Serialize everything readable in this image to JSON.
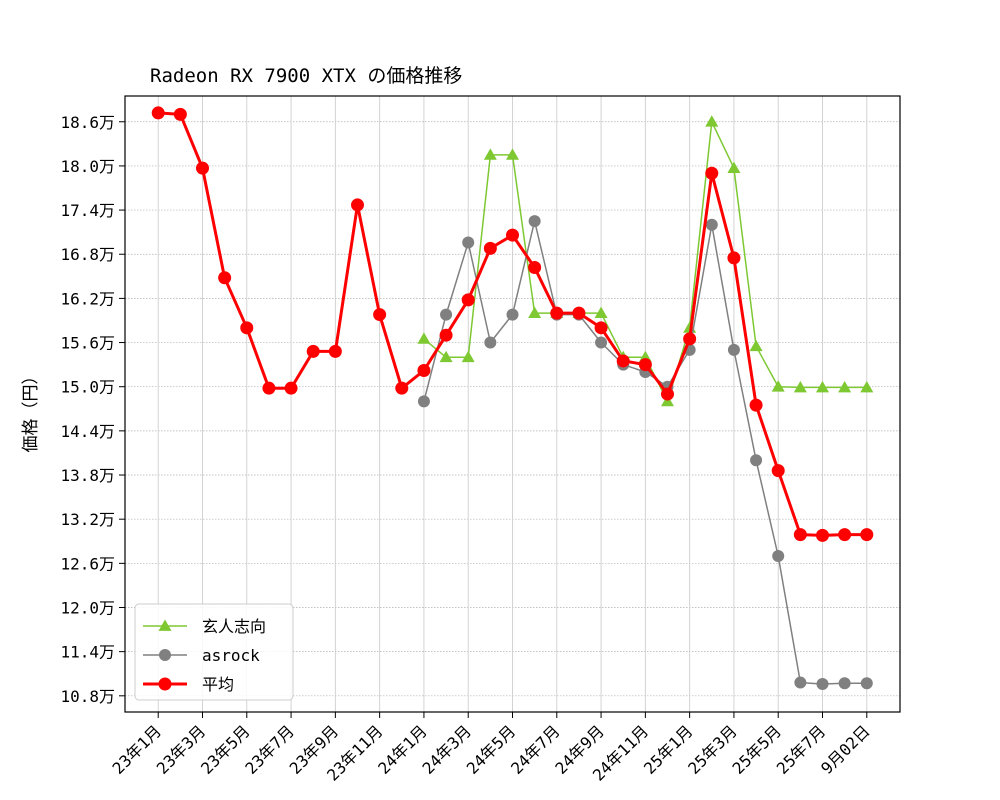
{
  "chart_data": {
    "type": "line",
    "title": "Radeon RX 7900 XTX の価格推移",
    "xlabel": "",
    "ylabel": "価格（円）",
    "ylim": [
      10.58,
      18.95
    ],
    "yticks": [
      10.8,
      11.4,
      12.0,
      12.6,
      13.2,
      13.8,
      14.4,
      15.0,
      15.6,
      16.2,
      16.8,
      17.4,
      18.0,
      18.6
    ],
    "ytick_labels": [
      "10.8万",
      "11.4万",
      "12.0万",
      "12.6万",
      "13.2万",
      "13.8万",
      "14.4万",
      "15.0万",
      "15.6万",
      "16.2万",
      "16.8万",
      "17.4万",
      "18.0万",
      "18.6万"
    ],
    "xlim": [
      -1.5,
      33.5
    ],
    "xticks": [
      0,
      2,
      4,
      6,
      8,
      10,
      12,
      14,
      16,
      18,
      20,
      22,
      24,
      26,
      28,
      30,
      32
    ],
    "xtick_labels": [
      "23年1月",
      "23年3月",
      "23年5月",
      "23年7月",
      "23年9月",
      "23年11月",
      "24年1月",
      "24年3月",
      "24年5月",
      "24年7月",
      "24年9月",
      "24年11月",
      "25年1月",
      "25年3月",
      "25年5月",
      "25年7月",
      "9月02日"
    ],
    "grid": true,
    "legend_position": "lower-left",
    "series": [
      {
        "name": "玄人志向",
        "color": "#7ec832",
        "marker": "triangle",
        "x": [
          12,
          13,
          14,
          15,
          16,
          17,
          18,
          19,
          20,
          21,
          22,
          23,
          24,
          25,
          26,
          27,
          28,
          29,
          30,
          31,
          32
        ],
        "values": [
          15.65,
          15.4,
          15.4,
          18.15,
          18.15,
          16.0,
          16.0,
          16.0,
          16.0,
          15.4,
          15.4,
          14.8,
          15.8,
          18.6,
          17.97,
          15.55,
          15.0,
          14.99,
          14.99,
          14.99,
          14.99
        ]
      },
      {
        "name": "asrock",
        "color": "#808080",
        "marker": "circle",
        "x": [
          12,
          13,
          14,
          15,
          16,
          17,
          18,
          19,
          20,
          21,
          22,
          23,
          24,
          25,
          26,
          27,
          28,
          29,
          30,
          31,
          32
        ],
        "values": [
          14.8,
          15.98,
          16.96,
          15.6,
          15.98,
          17.25,
          15.98,
          15.98,
          15.6,
          15.3,
          15.2,
          15.0,
          15.5,
          17.2,
          15.5,
          14.0,
          12.7,
          10.98,
          10.96,
          10.97,
          10.97
        ]
      },
      {
        "name": "平均",
        "color": "#ff0000",
        "marker": "circle",
        "x": [
          0,
          1,
          2,
          3,
          4,
          5,
          6,
          7,
          8,
          9,
          10,
          11,
          12,
          13,
          14,
          15,
          16,
          17,
          18,
          19,
          20,
          21,
          22,
          23,
          24,
          25,
          26,
          27,
          28,
          29,
          30,
          31,
          32
        ],
        "values": [
          18.72,
          18.7,
          17.97,
          16.48,
          15.8,
          14.98,
          14.98,
          15.48,
          15.48,
          17.47,
          15.98,
          14.98,
          15.22,
          15.7,
          16.18,
          16.88,
          17.06,
          16.62,
          16.0,
          16.0,
          15.8,
          15.35,
          15.3,
          14.9,
          15.65,
          17.9,
          16.75,
          14.75,
          13.86,
          12.99,
          12.98,
          12.99,
          12.99
        ]
      }
    ]
  }
}
